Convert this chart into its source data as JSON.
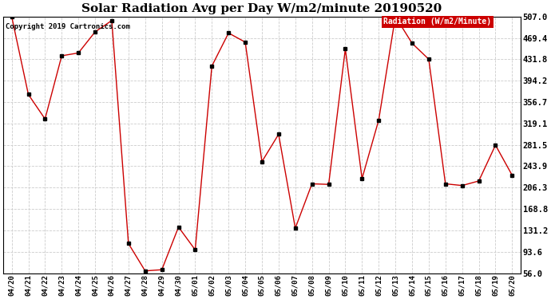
{
  "title": "Solar Radiation Avg per Day W/m2/minute 20190520",
  "copyright": "Copyright 2019 Cartronics.com",
  "legend_label": "Radiation (W/m2/Minute)",
  "legend_bg": "#cc0000",
  "legend_text_color": "#ffffff",
  "line_color": "#cc0000",
  "marker_color": "#000000",
  "bg_color": "#ffffff",
  "grid_color": "#cccccc",
  "border_color": "#000000",
  "dates": [
    "04/20",
    "04/21",
    "04/22",
    "04/23",
    "04/24",
    "04/25",
    "04/26",
    "04/27",
    "04/28",
    "04/29",
    "04/30",
    "05/01",
    "05/02",
    "05/03",
    "05/04",
    "05/05",
    "05/06",
    "05/07",
    "05/08",
    "05/09",
    "05/10",
    "05/11",
    "05/12",
    "05/13",
    "05/14",
    "05/15",
    "05/16",
    "05/17",
    "05/18",
    "05/19",
    "05/20"
  ],
  "values": [
    507.0,
    370.0,
    327.0,
    438.0,
    443.0,
    480.0,
    500.0,
    108.0,
    60.0,
    62.0,
    137.0,
    97.0,
    420.0,
    478.0,
    462.0,
    252.0,
    300.0,
    135.0,
    213.0,
    212.0,
    450.0,
    222.0,
    325.0,
    507.0,
    460.0,
    432.0,
    213.0,
    210.0,
    218.0,
    281.0,
    228.0
  ],
  "ylim": [
    56.0,
    507.0
  ],
  "yticks": [
    56.0,
    93.6,
    131.2,
    168.8,
    206.3,
    243.9,
    281.5,
    319.1,
    356.7,
    394.2,
    431.8,
    469.4,
    507.0
  ],
  "title_fontsize": 11,
  "xlabel_fontsize": 6.5,
  "ylabel_fontsize": 7.5,
  "copyright_fontsize": 6.5,
  "legend_fontsize": 7
}
